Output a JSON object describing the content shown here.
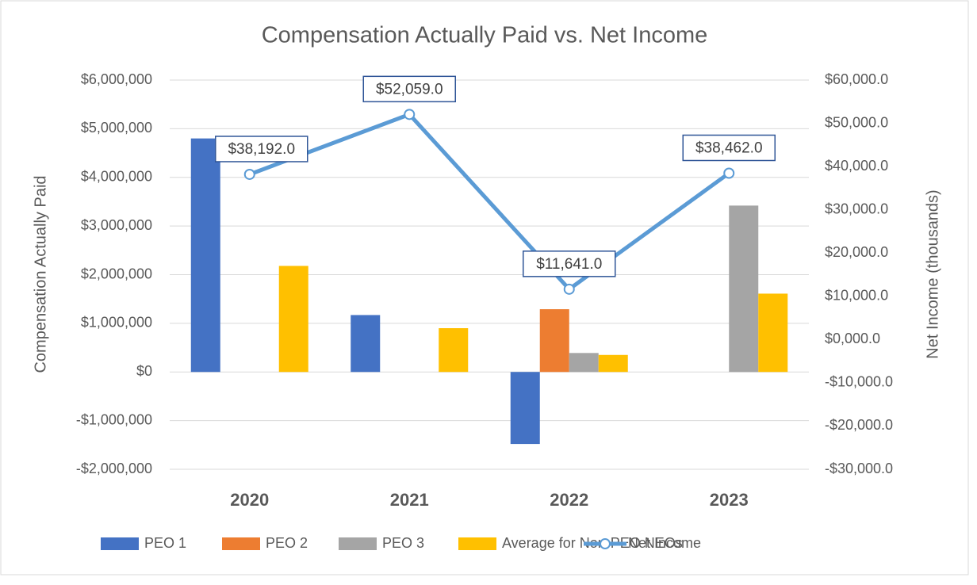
{
  "chart_data": {
    "type": "bar",
    "title": "Compensation Actually Paid vs. Net Income",
    "y_label": "Compensation Actually Paid",
    "y2_label": "Net Income (thousands)",
    "categories": [
      "2020",
      "2021",
      "2022",
      "2023"
    ],
    "series": [
      {
        "name": "PEO 1",
        "color": "#4472c4",
        "values": [
          4800000,
          1170000,
          -1480000,
          null
        ]
      },
      {
        "name": "PEO 2",
        "color": "#ed7d31",
        "values": [
          null,
          null,
          1290000,
          null
        ]
      },
      {
        "name": "PEO 3",
        "color": "#a5a5a5",
        "values": [
          null,
          null,
          390000,
          3420000
        ]
      },
      {
        "name": "Average for Non-PEO NEOs",
        "color": "#ffc000",
        "values": [
          2180000,
          900000,
          350000,
          1610000
        ]
      },
      {
        "name": "Net Income",
        "type": "line",
        "axis": "y2",
        "color": "#5b9bd5",
        "values": [
          38192,
          52059,
          11641,
          38462
        ],
        "value_labels": [
          "$38,192.0",
          "$52,059.0",
          "$11,641.0",
          "$38,462.0"
        ]
      }
    ],
    "ylim": [
      -2000000,
      6000000
    ],
    "yticks": [
      {
        "value": -2000000,
        "label": "-$2,000,000"
      },
      {
        "value": -1000000,
        "label": "-$1,000,000"
      },
      {
        "value": 0,
        "label": "$0"
      },
      {
        "value": 1000000,
        "label": "$1,000,000"
      },
      {
        "value": 2000000,
        "label": "$2,000,000"
      },
      {
        "value": 3000000,
        "label": "$3,000,000"
      },
      {
        "value": 4000000,
        "label": "$4,000,000"
      },
      {
        "value": 5000000,
        "label": "$5,000,000"
      },
      {
        "value": 6000000,
        "label": "$6,000,000"
      }
    ],
    "y2lim": [
      -30000,
      60000
    ],
    "y2ticks": [
      {
        "value": -30000,
        "label": "-$30,000.0"
      },
      {
        "value": -20000,
        "label": "-$20,000.0"
      },
      {
        "value": -10000,
        "label": "-$10,000.0"
      },
      {
        "value": 0,
        "label": "$0,000.0"
      },
      {
        "value": 10000,
        "label": "$10,000.0"
      },
      {
        "value": 20000,
        "label": "$20,000.0"
      },
      {
        "value": 30000,
        "label": "$30,000.0"
      },
      {
        "value": 40000,
        "label": "$40,000.0"
      },
      {
        "value": 50000,
        "label": "$50,000.0"
      },
      {
        "value": 60000,
        "label": "$60,000.0"
      }
    ],
    "grid": true,
    "legend": "bottom"
  }
}
